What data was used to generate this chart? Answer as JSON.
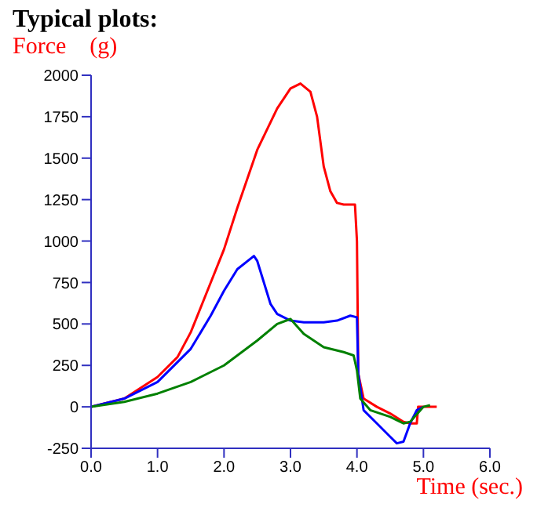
{
  "chart_data": {
    "type": "line",
    "title": "Typical plots:",
    "ylabel": "Force    (g)",
    "xlabel": "Time (sec.)",
    "xlim": [
      0,
      6
    ],
    "xticks": [
      {
        "value": 0,
        "label": "0.0"
      },
      {
        "value": 1,
        "label": "1.0"
      },
      {
        "value": 2,
        "label": "2.0"
      },
      {
        "value": 3,
        "label": "3.0"
      },
      {
        "value": 4,
        "label": "4.0"
      },
      {
        "value": 5,
        "label": "5.0"
      },
      {
        "value": 6,
        "label": "6.0"
      }
    ],
    "ylim": [
      -250,
      2000
    ],
    "yticks": [
      -250,
      0,
      250,
      500,
      750,
      1000,
      1250,
      1500,
      1750,
      2000
    ],
    "marker": "none",
    "line_style": "solid",
    "series": [
      {
        "color": "#ff0000",
        "x": [
          0,
          0.5,
          1,
          1.3,
          1.5,
          1.8,
          2,
          2.2,
          2.5,
          2.8,
          3,
          3.15,
          3.3,
          3.4,
          3.5,
          3.6,
          3.7,
          3.8,
          3.9,
          3.97,
          4,
          4.02,
          4.1,
          4.3,
          4.5,
          4.7,
          4.8,
          4.9,
          4.92,
          5.2
        ],
        "values": [
          0,
          50,
          180,
          300,
          450,
          750,
          950,
          1200,
          1550,
          1800,
          1920,
          1950,
          1900,
          1750,
          1450,
          1300,
          1230,
          1220,
          1220,
          1220,
          1000,
          200,
          50,
          0,
          -40,
          -90,
          -100,
          -100,
          0,
          0
        ]
      },
      {
        "color": "#0000ff",
        "x": [
          0,
          0.5,
          1,
          1.5,
          1.8,
          2,
          2.2,
          2.45,
          2.5,
          2.6,
          2.7,
          2.8,
          3,
          3.2,
          3.5,
          3.7,
          3.9,
          4,
          4.02,
          4.1,
          4.3,
          4.5,
          4.6,
          4.7,
          4.8,
          4.9,
          5
        ],
        "values": [
          0,
          50,
          150,
          350,
          550,
          700,
          830,
          910,
          880,
          750,
          620,
          560,
          520,
          510,
          510,
          520,
          550,
          540,
          200,
          -20,
          -100,
          -180,
          -220,
          -210,
          -100,
          -20,
          0
        ]
      },
      {
        "color": "#008000",
        "x": [
          0,
          0.5,
          1,
          1.5,
          2,
          2.5,
          2.8,
          3,
          3.2,
          3.5,
          3.8,
          3.95,
          4,
          4.05,
          4.2,
          4.5,
          4.7,
          4.8,
          5,
          5.1
        ],
        "values": [
          0,
          30,
          80,
          150,
          250,
          400,
          500,
          530,
          440,
          360,
          330,
          310,
          220,
          50,
          -20,
          -60,
          -100,
          -90,
          0,
          10
        ]
      }
    ]
  }
}
